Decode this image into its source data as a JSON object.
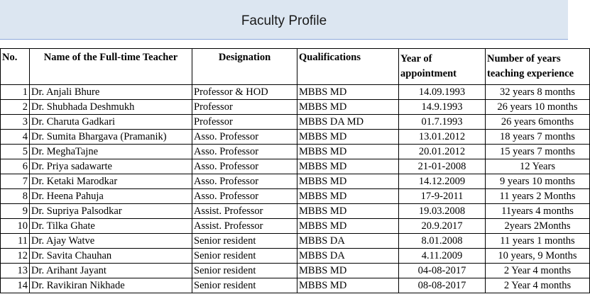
{
  "header": {
    "title": "Faculty Profile"
  },
  "table": {
    "columns": {
      "no": "No.",
      "name": "Name of the Full-time Teacher",
      "designation": "Designation",
      "qualifications": "Qualifications",
      "year_line1": "Year of",
      "year_line2": "appointment",
      "exp_line1": "Number of years",
      "exp_line2": "teaching experience"
    },
    "rows": [
      {
        "no": "1",
        "name": "Dr. Anjali Bhure",
        "designation": "Professor & HOD",
        "qualifications": "MBBS MD",
        "year": "14.09.1993",
        "experience": "32 years 8 months"
      },
      {
        "no": "2",
        "name": "Dr. Shubhada Deshmukh",
        "designation": "Professor",
        "qualifications": "MBBS MD",
        "year": "14.9.1993",
        "experience": "26 years  10 months"
      },
      {
        "no": "3",
        "name": "Dr. Charuta Gadkari",
        "designation": "Professor",
        "qualifications": "MBBS DA MD",
        "year": "01.7.1993",
        "experience": "26 years   6months"
      },
      {
        "no": "4",
        "name": "Dr. Sumita Bhargava (Pramanik)",
        "designation": "Asso. Professor",
        "qualifications": "MBBS MD",
        "year": "13.01.2012",
        "experience": "18 years   7 months"
      },
      {
        "no": "5",
        "name": "Dr. MeghaTajne",
        "designation": "Asso. Professor",
        "qualifications": "MBBS MD",
        "year": "20.01.2012",
        "experience": "15 years   7 months"
      },
      {
        "no": "6",
        "name": "Dr. Priya sadawarte",
        "designation": "Asso. Professor",
        "qualifications": "MBBS MD",
        "year": "21-01-2008",
        "experience": "12 Years"
      },
      {
        "no": "7",
        "name": "Dr. Ketaki Marodkar",
        "designation": "Asso. Professor",
        "qualifications": "MBBS MD",
        "year": "14.12.2009",
        "experience": "9 years   10 months"
      },
      {
        "no": "8",
        "name": "Dr. Heena Pahuja",
        "designation": "Asso. Professor",
        "qualifications": "MBBS MD",
        "year": "17-9-2011",
        "experience": "11 years   2 Months"
      },
      {
        "no": "9",
        "name": "Dr. Supriya Palsodkar",
        "designation": "Assist. Professor",
        "qualifications": "MBBS MD",
        "year": "19.03.2008",
        "experience": "11years 4 months"
      },
      {
        "no": "10",
        "name": "Dr. Tilka Ghate",
        "designation": "Assist. Professor",
        "qualifications": "MBBS MD",
        "year": "20.9.2017",
        "experience": "2years 2Months"
      },
      {
        "no": "11",
        "name": "Dr. Ajay Watve",
        "designation": "Senior resident",
        "qualifications": "MBBS DA",
        "year": "8.01.2008",
        "experience": "11 years   1 months"
      },
      {
        "no": "12",
        "name": "Dr. Savita Chauhan",
        "designation": "Senior resident",
        "qualifications": "MBBS DA",
        "year": "4.11.2009",
        "experience": "10 years,   9 Months"
      },
      {
        "no": "13",
        "name": "Dr. Arihant Jayant",
        "designation": "Senior resident",
        "qualifications": "MBBS MD",
        "year": "04-08-2017",
        "experience": "2 Year 4 months"
      },
      {
        "no": "14",
        "name": "Dr. Ravikiran Nikhade",
        "designation": "Senior resident",
        "qualifications": "MBBS MD",
        "year": "08-08-2017",
        "experience": "2 Year 4 months"
      }
    ]
  }
}
